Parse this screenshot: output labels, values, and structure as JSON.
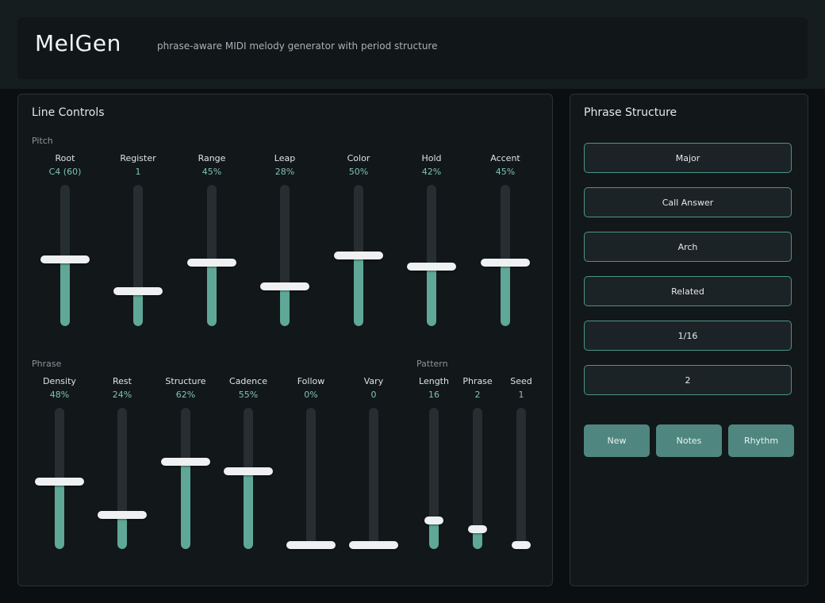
{
  "header": {
    "title": "MelGen",
    "subtitle": "phrase-aware MIDI melody generator with period structure"
  },
  "line_controls": {
    "title": "Line Controls",
    "pitch": {
      "label": "Pitch",
      "sliders": [
        {
          "label": "Root",
          "value": "C4 (60)",
          "level": 0.47
        },
        {
          "label": "Register",
          "value": "1",
          "level": 0.25
        },
        {
          "label": "Range",
          "value": "45%",
          "level": 0.45
        },
        {
          "label": "Leap",
          "value": "28%",
          "level": 0.28
        },
        {
          "label": "Color",
          "value": "50%",
          "level": 0.5
        },
        {
          "label": "Hold",
          "value": "42%",
          "level": 0.42
        },
        {
          "label": "Accent",
          "value": "45%",
          "level": 0.45
        }
      ]
    },
    "phrase": {
      "label": "Phrase",
      "sliders": [
        {
          "label": "Density",
          "value": "48%",
          "level": 0.48
        },
        {
          "label": "Rest",
          "value": "24%",
          "level": 0.24
        },
        {
          "label": "Structure",
          "value": "62%",
          "level": 0.62
        },
        {
          "label": "Cadence",
          "value": "55%",
          "level": 0.55
        },
        {
          "label": "Follow",
          "value": "0%",
          "level": 0.0
        },
        {
          "label": "Vary",
          "value": "0",
          "level": 0.0
        }
      ]
    },
    "pattern": {
      "label": "Pattern",
      "sliders": [
        {
          "label": "Length",
          "value": "16",
          "level": 0.2
        },
        {
          "label": "Phrase",
          "value": "2",
          "level": 0.14
        },
        {
          "label": "Seed",
          "value": "1",
          "level": 0.0
        }
      ]
    }
  },
  "phrase_structure": {
    "title": "Phrase Structure",
    "options": [
      "Major",
      "Call Answer",
      "Arch",
      "Related",
      "1/16",
      "2"
    ],
    "actions": [
      "New",
      "Notes",
      "Rhythm"
    ]
  },
  "colors": {
    "accent_fill": "#5fa898",
    "button_bg": "#4f8780",
    "select_border": "#4c9488"
  }
}
